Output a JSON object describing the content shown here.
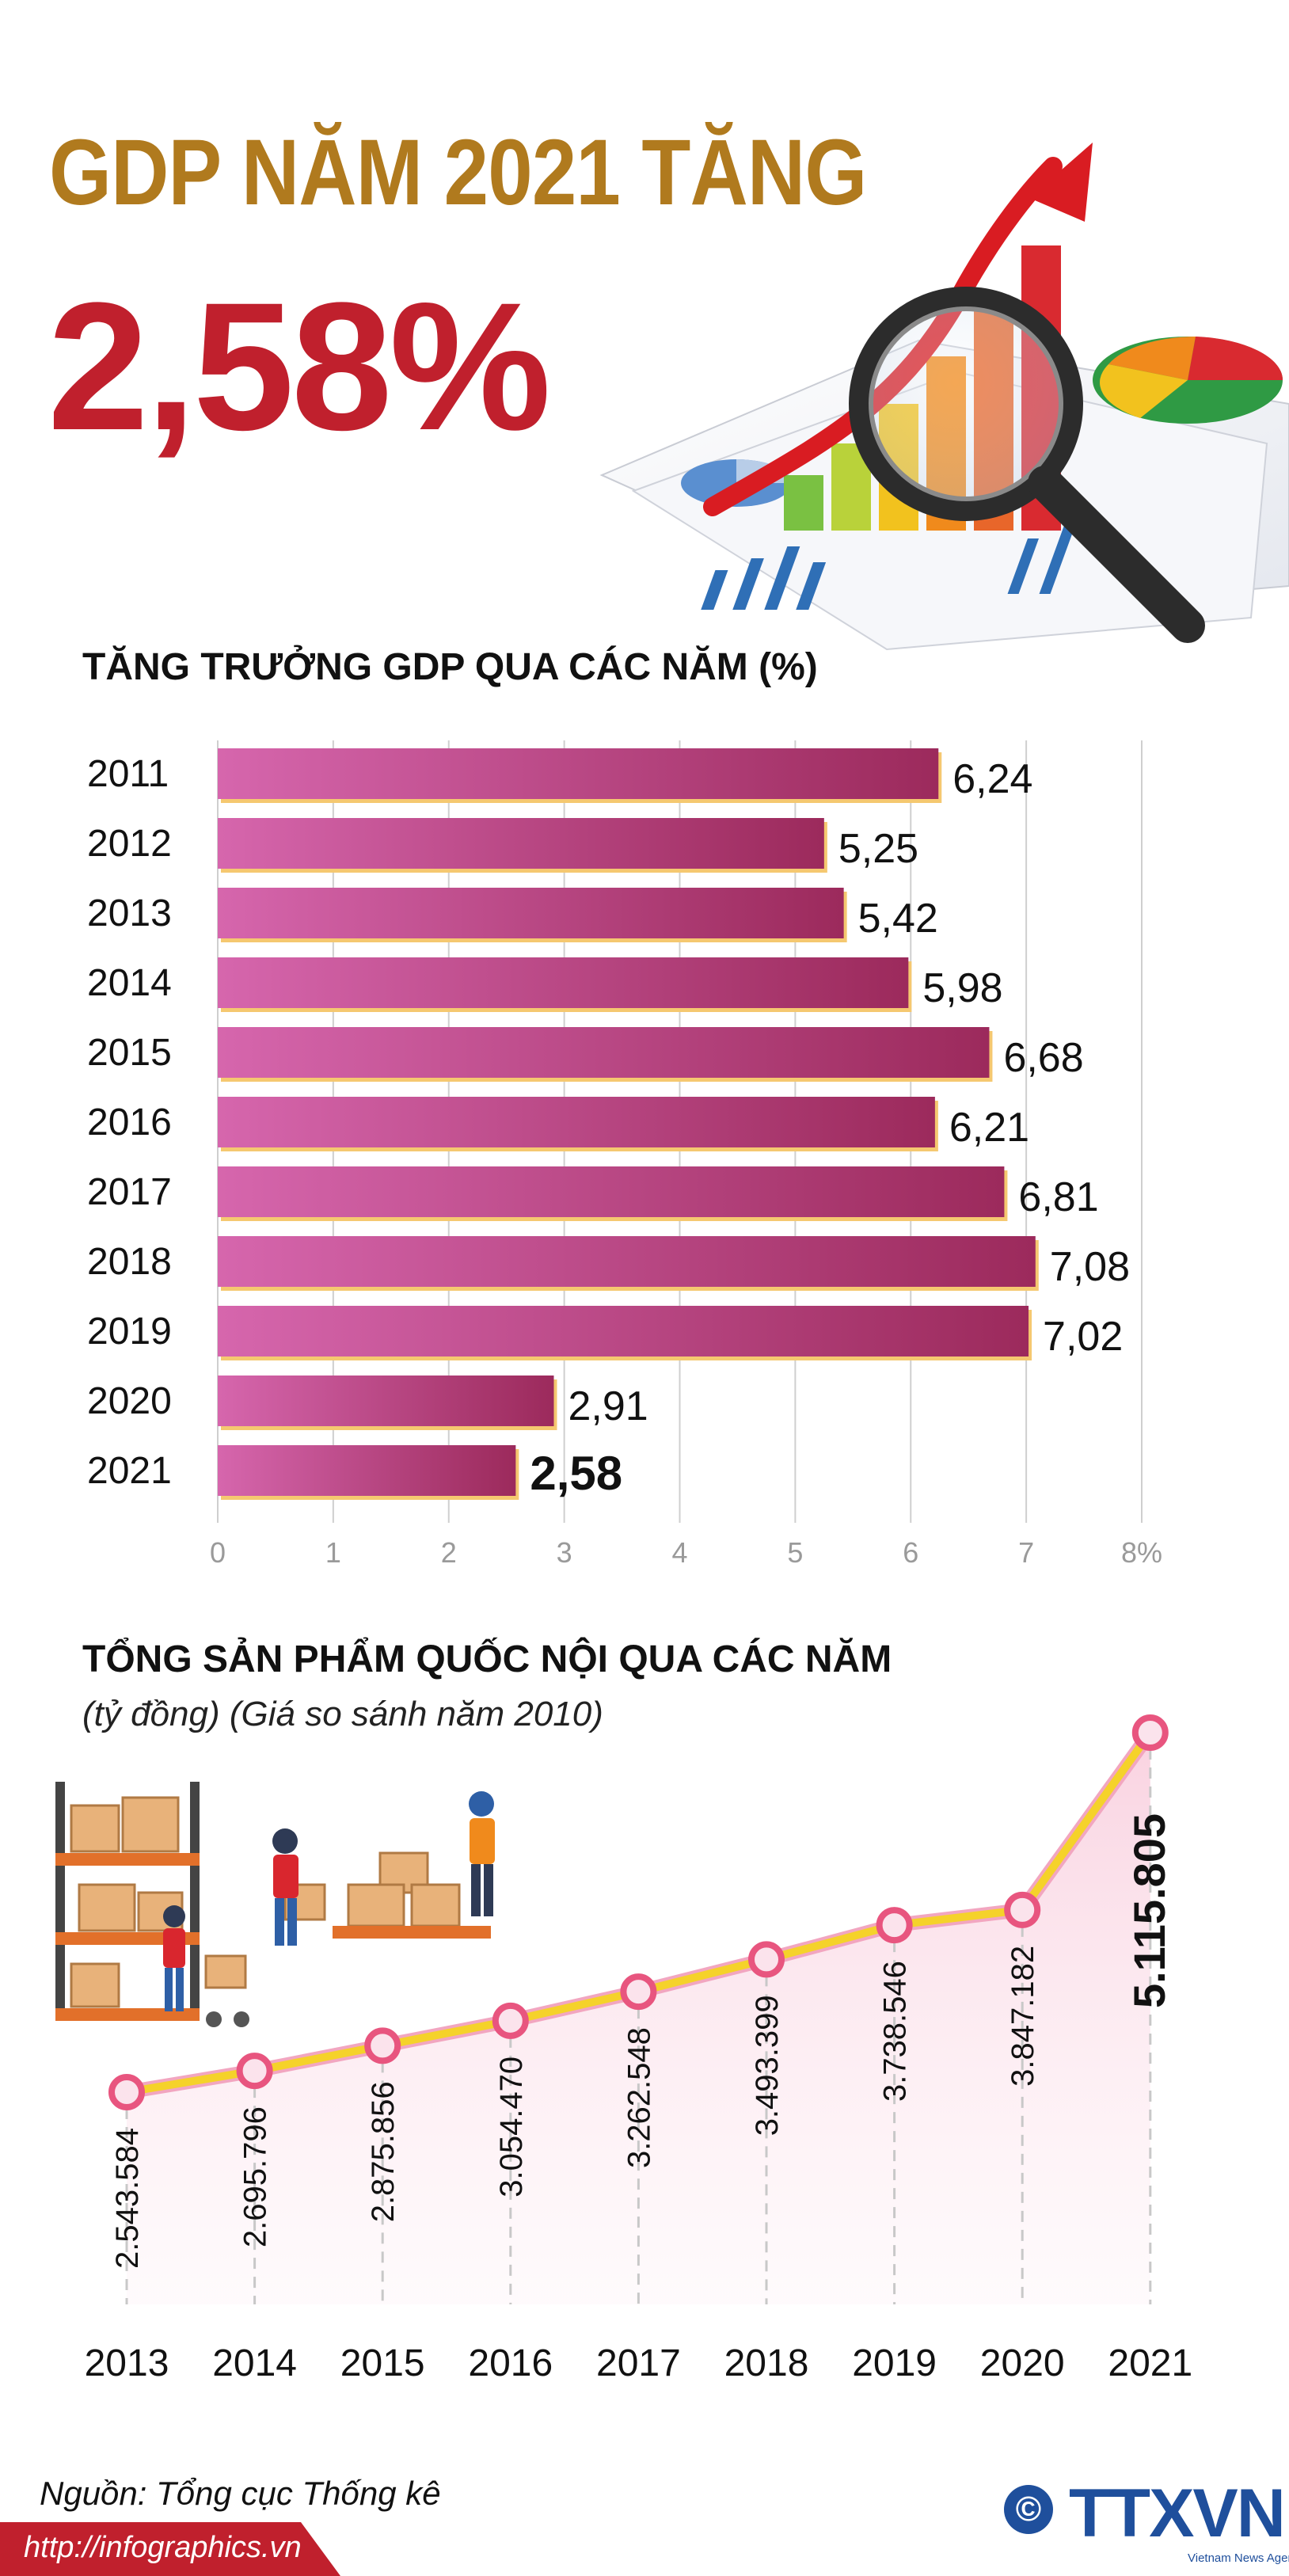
{
  "header": {
    "headline": "GDP NĂM 2021 TĂNG",
    "big_number": "2,58%"
  },
  "colors": {
    "headline": "#b07a1e",
    "accent_red": "#c0202d",
    "bar_fill_light": "#d666ad",
    "bar_fill_dark": "#9c2a5c",
    "bar_shadow": "#f5c870",
    "line_color": "#f5d22a",
    "marker_ring": "#e8557f",
    "brand_blue": "#1f4f9c"
  },
  "chart_data": [
    {
      "type": "bar",
      "orientation": "horizontal",
      "title": "TĂNG TRƯỞNG GDP QUA CÁC NĂM (%)",
      "categories": [
        "2011",
        "2012",
        "2013",
        "2014",
        "2015",
        "2016",
        "2017",
        "2018",
        "2019",
        "2020",
        "2021"
      ],
      "values": [
        6.24,
        5.25,
        5.42,
        5.98,
        6.68,
        6.21,
        6.81,
        7.08,
        7.02,
        2.91,
        2.58
      ],
      "value_labels": [
        "6,24",
        "5,25",
        "5,42",
        "5,98",
        "6,68",
        "6,21",
        "6,81",
        "7,08",
        "7,02",
        "2,91",
        "2,58"
      ],
      "highlight_index": 10,
      "xlim": [
        0,
        8
      ],
      "x_ticks": [
        "0",
        "1",
        "2",
        "3",
        "4",
        "5",
        "6",
        "7",
        "8%"
      ],
      "grid": true
    },
    {
      "type": "line",
      "title": "TỔNG SẢN PHẨM QUỐC NỘI QUA CÁC NĂM",
      "subtitle": "(tỷ đồng) (Giá so sánh năm 2010)",
      "x": [
        "2013",
        "2014",
        "2015",
        "2016",
        "2017",
        "2018",
        "2019",
        "2020",
        "2021"
      ],
      "values": [
        2543584,
        2695796,
        2875856,
        3054470,
        3262548,
        3493399,
        3738546,
        3847182,
        5115805
      ],
      "value_labels": [
        "2.543.584",
        "2.695.796",
        "2.875.856",
        "3.054.470",
        "3.262.548",
        "3.493.399",
        "3.738.546",
        "3.847.182",
        "5.115.805"
      ],
      "highlight_index": 8,
      "grid": false
    }
  ],
  "footer": {
    "source": "Nguồn: Tổng cục Thống kê",
    "url": "http://infographics.vn",
    "copyright_symbol": "©",
    "logo": "TTXVN",
    "logo_subtitle": "Vietnam News Agency"
  }
}
